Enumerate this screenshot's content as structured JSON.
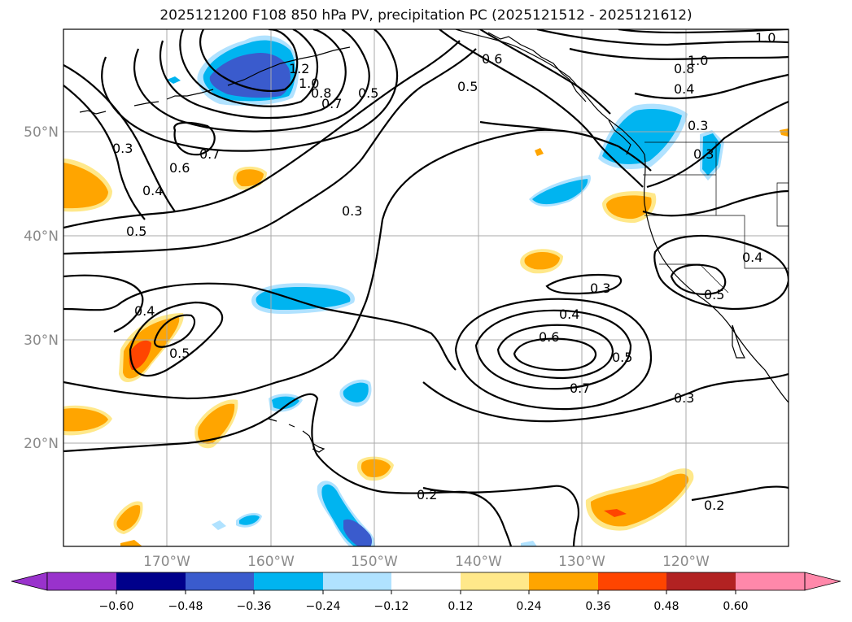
{
  "title": "2025121200 F108 850 hPa PV, precipitation PC (2025121512 - 2025121612)",
  "lat_labels": [
    "50°N",
    "40°N",
    "30°N",
    "20°N"
  ],
  "lon_labels": [
    "170°W",
    "160°W",
    "150°W",
    "140°W",
    "130°W",
    "120°W"
  ],
  "contour_labels": [
    "1.0",
    "1.0",
    "0.8",
    "0.4",
    "0.3",
    "0.3",
    "0.6",
    "0.5",
    "1.2",
    "1.0",
    "0.8",
    "0.7",
    "0.5",
    "0.7",
    "0.6",
    "0.3",
    "0.4",
    "0.5",
    "0.3",
    "0.4",
    "0.5",
    "0.3",
    "0.4",
    "0.6",
    "0.7",
    "0.5",
    "0.3",
    "0.4",
    "0.5",
    "0.2",
    "0.2"
  ],
  "colorbar": {
    "ticks": [
      "−0.60",
      "−0.48",
      "−0.36",
      "−0.24",
      "−0.12",
      "0.12",
      "0.24",
      "0.36",
      "0.48",
      "0.60"
    ],
    "colors": [
      "#9932cc",
      "#00008b",
      "#3a5bcd",
      "#00b4f0",
      "#b0e2ff",
      "#ffffff",
      "#ffe88a",
      "#ffa500",
      "#ff4500",
      "#b22222",
      "#ff88aa"
    ]
  },
  "shading_colors": {
    "light_blue": "#b0e2ff",
    "blue": "#00b4f0",
    "royal_blue": "#3a5bcd",
    "light_yellow": "#ffe88a",
    "orange": "#ffa500",
    "red_orange": "#ff4500"
  }
}
